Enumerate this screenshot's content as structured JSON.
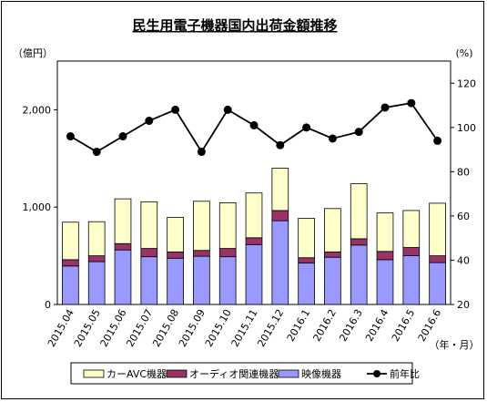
{
  "chart_data": {
    "type": "bar+line",
    "title": "民生用電子機器国内出荷金額推移",
    "y_left_unit": "（億円）",
    "y_right_unit": "(%)",
    "x_unit": "（年・月）",
    "categories": [
      "2015.04",
      "2015.05",
      "2015.06",
      "2015.07",
      "2015.08",
      "2015.09",
      "2015.10",
      "2015.11",
      "2015.12",
      "2016.1",
      "2016.2",
      "2016.3",
      "2016.4",
      "2016.5",
      "2016.6"
    ],
    "y_left_ticks": [
      "0",
      "1,000",
      "2,000"
    ],
    "y_left_tick_values": [
      0,
      1000,
      2000
    ],
    "y_left_range": [
      0,
      2500
    ],
    "y_right_ticks": [
      "20",
      "40",
      "60",
      "80",
      "100",
      "120"
    ],
    "y_right_tick_values": [
      20,
      40,
      60,
      80,
      100,
      120
    ],
    "y_right_range": [
      20,
      130
    ],
    "series": [
      {
        "name": "映像機器",
        "kind": "bar",
        "color": "#9999ff",
        "values": [
          395,
          440,
          560,
          490,
          475,
          495,
          490,
          615,
          860,
          425,
          485,
          610,
          460,
          500,
          430
        ]
      },
      {
        "name": "オーディオ関連機器",
        "kind": "bar",
        "color": "#993366",
        "values": [
          65,
          60,
          65,
          85,
          65,
          60,
          85,
          70,
          105,
          55,
          55,
          65,
          85,
          85,
          70
        ]
      },
      {
        "name": "カーAVC機器",
        "kind": "bar",
        "color": "#ffffcc",
        "values": [
          385,
          350,
          460,
          480,
          355,
          505,
          470,
          460,
          435,
          405,
          445,
          565,
          395,
          380,
          540
        ]
      },
      {
        "name": "前年比",
        "kind": "line",
        "color": "#000000",
        "values": [
          96,
          89,
          96,
          103,
          108,
          89,
          108,
          101,
          92,
          100,
          95,
          98,
          109,
          111,
          94
        ]
      }
    ],
    "grid": false,
    "legend_position": "bottom"
  }
}
